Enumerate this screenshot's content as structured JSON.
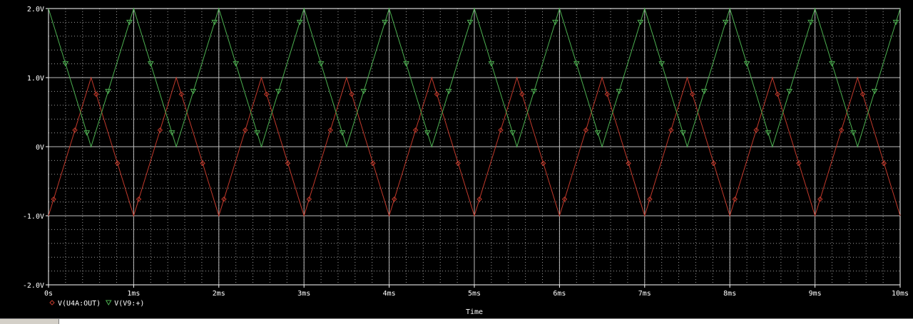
{
  "chart_data": {
    "type": "line",
    "xlabel": "Time",
    "ylabel": "",
    "xlim": [
      0,
      10
    ],
    "ylim": [
      -2,
      2
    ],
    "x_ticks": [
      "0s",
      "1ms",
      "2ms",
      "3ms",
      "4ms",
      "5ms",
      "6ms",
      "7ms",
      "8ms",
      "9ms",
      "10ms"
    ],
    "y_ticks": [
      "2.0V",
      "1.0V",
      "0V",
      "-1.0V",
      "-2.0V"
    ],
    "y_tick_values": [
      2,
      1,
      0,
      -1,
      -2
    ],
    "grid": true,
    "legend_position": "bottom-left",
    "series": [
      {
        "name": "V(U4A:OUT)",
        "marker": "diamond",
        "color": "#c0392b",
        "x": [
          0,
          0.5,
          1,
          1.5,
          2,
          2.5,
          3,
          3.5,
          4,
          4.5,
          5,
          5.5,
          6,
          6.5,
          7,
          7.5,
          8,
          8.5,
          9,
          9.5,
          10
        ],
        "y": [
          -1,
          1,
          -1,
          1,
          -1,
          1,
          -1,
          1,
          -1,
          1,
          -1,
          1,
          -1,
          1,
          -1,
          1,
          -1,
          1,
          -1,
          1,
          -1
        ]
      },
      {
        "name": "V(V9:+)",
        "marker": "triangle-down",
        "color": "#4caf50",
        "x": [
          0,
          0.5,
          1,
          1.5,
          2,
          2.5,
          3,
          3.5,
          4,
          4.5,
          5,
          5.5,
          6,
          6.5,
          7,
          7.5,
          8,
          8.5,
          9,
          9.5,
          10
        ],
        "y": [
          2,
          0,
          2,
          0,
          2,
          0,
          2,
          0,
          2,
          0,
          2,
          0,
          2,
          0,
          2,
          0,
          2,
          0,
          2,
          0,
          2
        ]
      }
    ]
  }
}
